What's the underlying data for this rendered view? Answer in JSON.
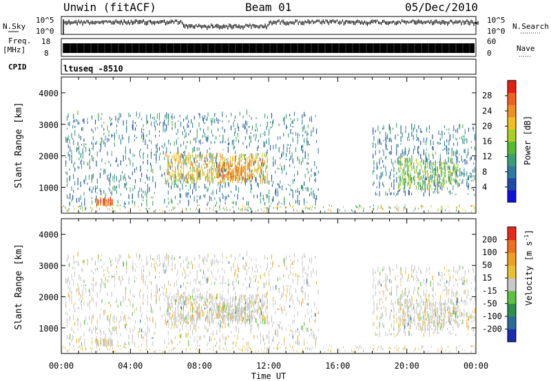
{
  "header": {
    "station": "Unwin (fitACF)",
    "beam": "Beam 01",
    "date": "05/Dec/2010"
  },
  "panels": {
    "nsky_label": "N.Sky",
    "nsky_ticks": [
      "10^5",
      "10^0"
    ],
    "nsearch_label": "N.Search",
    "nsearch_ticks": [
      "10^5",
      "10^0"
    ],
    "freq_label_1": "Freq.",
    "freq_label_2": "[MHz]",
    "freq_ticks": [
      "18",
      "8"
    ],
    "nave_label": "Nave",
    "nave_ticks": [
      "60",
      "0"
    ],
    "cpid_label": "CPID",
    "cpid_value": "ltuseq -8510"
  },
  "colors": {
    "power": [
      "#1010e0",
      "#1f4aa8",
      "#2f7aa0",
      "#3aa070",
      "#55bb30",
      "#a8d020",
      "#f0c020",
      "#f09020",
      "#f06020",
      "#e02010"
    ],
    "velocity": [
      "#1a2bb0",
      "#2a6a9a",
      "#2f8f4f",
      "#5fc040",
      "#c8c8c8",
      "#e8c030",
      "#f0a020",
      "#f07020",
      "#e82818"
    ]
  },
  "chart_data": [
    {
      "type": "heatmap",
      "title": "Power",
      "xlabel": "",
      "ylabel": "Slant Range [km]",
      "x_ticks": [
        "00:00",
        "04:00",
        "08:00",
        "12:00",
        "16:00",
        "20:00",
        "00:00"
      ],
      "xlim_hours": [
        0,
        24
      ],
      "y_ticks": [
        1000,
        2000,
        3000,
        4000
      ],
      "ylim": [
        180,
        4500
      ],
      "colorbar": {
        "label": "Power [dB]",
        "range": [
          0,
          32
        ],
        "tick_values": [
          4,
          8,
          12,
          16,
          20,
          24,
          28
        ],
        "ticks": [
          "4",
          "8",
          "12",
          "16",
          "20",
          "24",
          "28"
        ]
      },
      "echo_regions": [
        {
          "t_start": 0.2,
          "t_end": 14.9,
          "range_low": 400,
          "range_high": 3300,
          "level": 8
        },
        {
          "t_start": 6.0,
          "t_end": 12.0,
          "range_low": 1100,
          "range_high": 2000,
          "level": 22
        },
        {
          "t_start": 9.0,
          "t_end": 11.0,
          "range_low": 1200,
          "range_high": 1700,
          "level": 26
        },
        {
          "t_start": 2.0,
          "t_end": 3.0,
          "range_low": 400,
          "range_high": 550,
          "level": 28
        },
        {
          "t_start": 18.0,
          "t_end": 24.0,
          "range_low": 700,
          "range_high": 2900,
          "level": 8
        },
        {
          "t_start": 19.5,
          "t_end": 23.0,
          "range_low": 900,
          "range_high": 1800,
          "level": 16
        }
      ]
    },
    {
      "type": "heatmap",
      "title": "Velocity",
      "xlabel": "Time UT",
      "ylabel": "Slant Range [km]",
      "x_ticks": [
        "00:00",
        "04:00",
        "08:00",
        "12:00",
        "16:00",
        "20:00",
        "00:00"
      ],
      "xlim_hours": [
        0,
        24
      ],
      "y_ticks": [
        1000,
        2000,
        3000,
        4000
      ],
      "ylim": [
        180,
        4500
      ],
      "colorbar": {
        "label": "Velocity [m s^-1]",
        "ticks": [
          "200",
          "100",
          "50",
          "15",
          "-15",
          "-50",
          "-100",
          "-200"
        ]
      }
    }
  ]
}
